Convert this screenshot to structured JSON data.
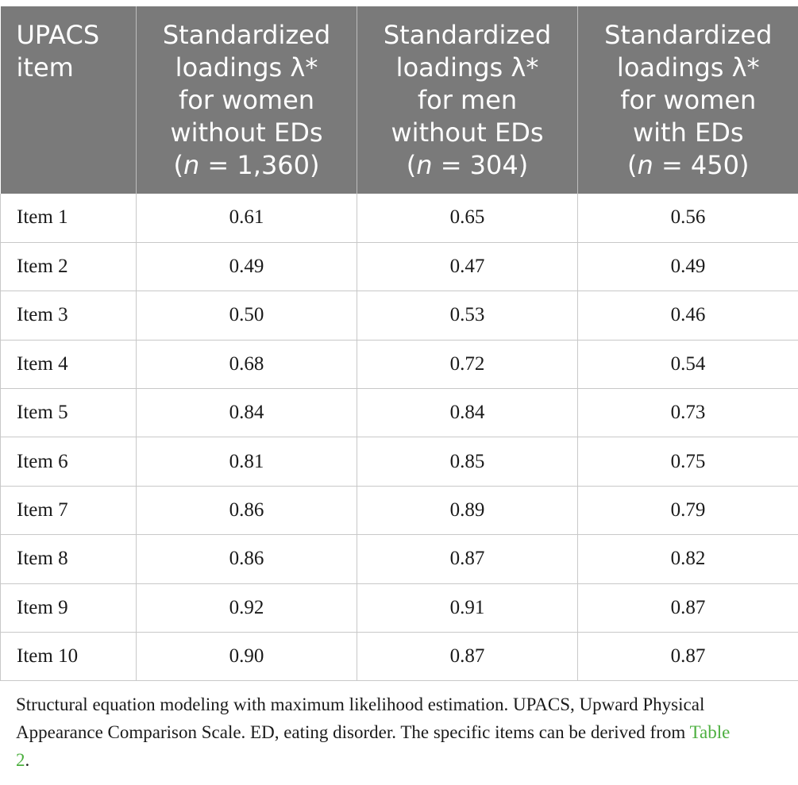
{
  "table": {
    "headers": [
      {
        "lines": [
          "UPACS",
          "item"
        ]
      },
      {
        "lines": [
          "Standardized",
          "loadings λ*",
          "for women",
          "without EDs"
        ],
        "n_prefix": "(",
        "n_symbol": "n",
        "n_value": " = 1,360)"
      },
      {
        "lines": [
          "Standardized",
          "loadings λ*",
          "for men",
          "without EDs"
        ],
        "n_prefix": "(",
        "n_symbol": "n",
        "n_value": " = 304)"
      },
      {
        "lines": [
          "Standardized",
          "loadings λ*",
          "for women",
          "with EDs"
        ],
        "n_prefix": "(",
        "n_symbol": "n",
        "n_value": " = 450)"
      }
    ],
    "rows": [
      [
        "Item 1",
        "0.61",
        "0.65",
        "0.56"
      ],
      [
        "Item 2",
        "0.49",
        "0.47",
        "0.49"
      ],
      [
        "Item 3",
        "0.50",
        "0.53",
        "0.46"
      ],
      [
        "Item 4",
        "0.68",
        "0.72",
        "0.54"
      ],
      [
        "Item 5",
        "0.84",
        "0.84",
        "0.73"
      ],
      [
        "Item 6",
        "0.81",
        "0.85",
        "0.75"
      ],
      [
        "Item 7",
        "0.86",
        "0.89",
        "0.79"
      ],
      [
        "Item 8",
        "0.86",
        "0.87",
        "0.82"
      ],
      [
        "Item 9",
        "0.92",
        "0.91",
        "0.87"
      ],
      [
        "Item 10",
        "0.90",
        "0.87",
        "0.87"
      ]
    ]
  },
  "footnote": {
    "text": "Structural equation modeling with maximum likelihood estimation. UPACS, Upward Physical Appearance Comparison Scale. ED, eating disorder. The specific items can be derived from ",
    "link_text": "Table 2",
    "end": "."
  },
  "colors": {
    "header_bg": "#7a7a7a",
    "link": "#4caf3f"
  }
}
